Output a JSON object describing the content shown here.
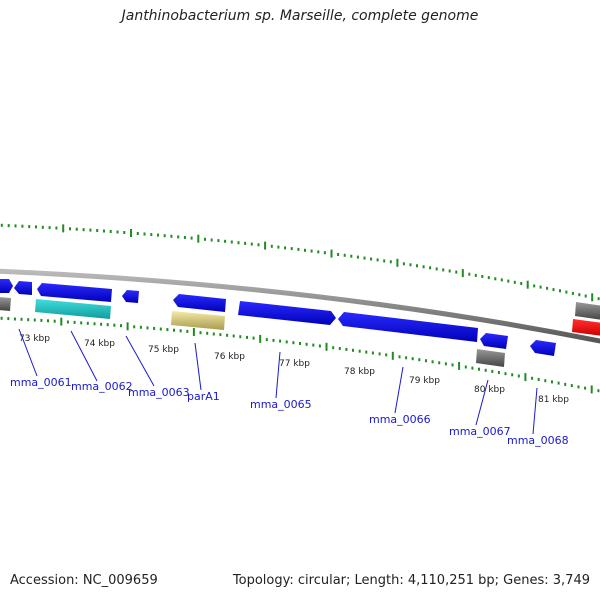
{
  "title": "Janthinobacterium sp. Marseille, complete genome",
  "footer": {
    "accession": "Accession: NC_009659",
    "summary": "Topology: circular; Length: 4,110,251 bp; Genes: 3,749"
  },
  "tick_labels": [
    "73 kbp",
    "74 kbp",
    "75 kbp",
    "76 kbp",
    "77 kbp",
    "78 kbp",
    "79 kbp",
    "80 kbp",
    "81 kbp"
  ],
  "gene_labels": [
    "mma_0061",
    "mma_0062",
    "mma_0063",
    "parA1",
    "mma_0065",
    "mma_0066",
    "mma_0067",
    "mma_0068"
  ],
  "colors": {
    "cds": "#0000ee",
    "rna": "#22cccc",
    "partition": "#eee29a",
    "pseudo": "#777777",
    "highlight": "#ff0000",
    "ticks": "#228b22",
    "backbone": "#888888",
    "label_line": "#1a1acc"
  }
}
